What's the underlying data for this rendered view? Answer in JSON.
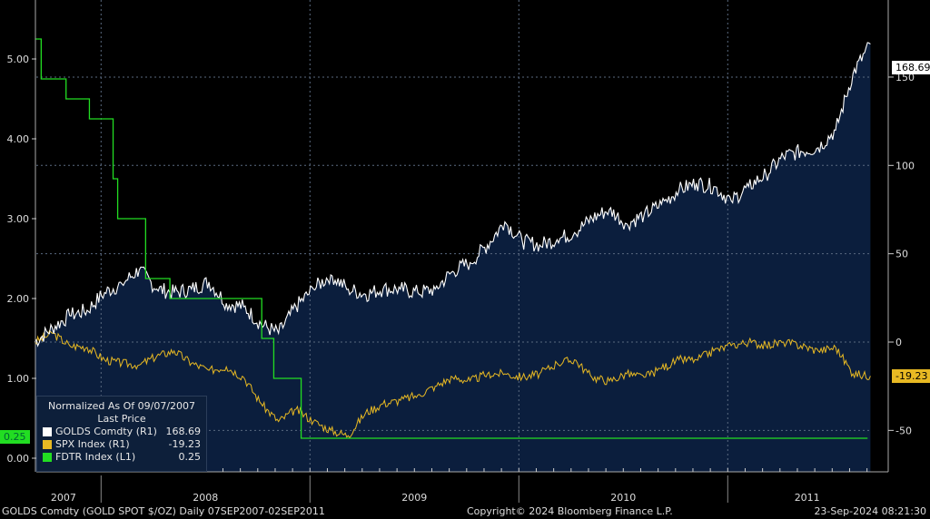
{
  "chart_data": {
    "type": "line",
    "title": "GOLDS Comdty (GOLD SPOT $/OZ)",
    "frequency": "Daily",
    "range_label": "07SEP2007-02SEP2011",
    "x_ticks": [
      "2007",
      "2008",
      "2009",
      "2010",
      "2011"
    ],
    "left_axis": {
      "ticks": [
        "0.00",
        "1.00",
        "2.00",
        "3.00",
        "4.00",
        "5.00"
      ],
      "tick_values": [
        0,
        1,
        2,
        3,
        4,
        5
      ],
      "ylim": [
        -0.1,
        5.8
      ]
    },
    "right_axis": {
      "ticks": [
        "-50",
        "0",
        "50",
        "100",
        "150"
      ],
      "tick_values": [
        -50,
        0,
        50,
        100,
        150
      ],
      "ylim": [
        -75,
        190
      ]
    },
    "legend": {
      "header1": "Normalized As Of 09/07/2007",
      "header2": "Last Price",
      "entries": [
        {
          "name": "GOLDS Comdty  (R1)",
          "value": "168.69",
          "color": "#ffffff"
        },
        {
          "name": "SPX Index  (R1)",
          "value": "-19.23",
          "color": "#e8b923"
        },
        {
          "name": "FDTR Index  (L1)",
          "value": "0.25",
          "color": "#22dd22"
        }
      ]
    },
    "last_value_tags": {
      "gold": "168.69",
      "spx": "-19.23",
      "fdtr": "0.25"
    },
    "dates": [
      "2007-09",
      "2007-10",
      "2007-11",
      "2007-12",
      "2008-01",
      "2008-02",
      "2008-03",
      "2008-04",
      "2008-05",
      "2008-06",
      "2008-07",
      "2008-08",
      "2008-09",
      "2008-10",
      "2008-11",
      "2008-12",
      "2009-01",
      "2009-02",
      "2009-03",
      "2009-04",
      "2009-05",
      "2009-06",
      "2009-07",
      "2009-08",
      "2009-09",
      "2009-10",
      "2009-11",
      "2009-12",
      "2010-01",
      "2010-02",
      "2010-03",
      "2010-04",
      "2010-05",
      "2010-06",
      "2010-07",
      "2010-08",
      "2010-09",
      "2010-10",
      "2010-11",
      "2010-12",
      "2011-01",
      "2011-02",
      "2011-03",
      "2011-04",
      "2011-05",
      "2011-06",
      "2011-07",
      "2011-08",
      "2011-09"
    ],
    "series": [
      {
        "name": "GOLDS Comdty",
        "axis": "right",
        "color": "#ffffff",
        "values": [
          0,
          8,
          15,
          18,
          28,
          33,
          41,
          30,
          28,
          30,
          34,
          22,
          20,
          10,
          5,
          20,
          30,
          38,
          30,
          27,
          30,
          30,
          28,
          30,
          40,
          45,
          55,
          68,
          57,
          55,
          58,
          62,
          70,
          75,
          67,
          72,
          78,
          86,
          90,
          88,
          80,
          88,
          95,
          105,
          108,
          110,
          120,
          152,
          168.69
        ]
      },
      {
        "name": "SPX Index",
        "axis": "right",
        "color": "#e8b923",
        "values": [
          0,
          5,
          -2,
          -3,
          -10,
          -12,
          -13,
          -8,
          -5,
          -12,
          -16,
          -14,
          -20,
          -35,
          -45,
          -38,
          -45,
          -50,
          -53,
          -40,
          -35,
          -33,
          -30,
          -25,
          -20,
          -22,
          -18,
          -18,
          -20,
          -18,
          -12,
          -10,
          -20,
          -22,
          -18,
          -20,
          -15,
          -10,
          -10,
          -5,
          -2,
          0,
          -2,
          0,
          -2,
          -5,
          -3,
          -18,
          -19.23
        ]
      },
      {
        "name": "FDTR Index",
        "axis": "left",
        "color": "#22dd22",
        "type": "step",
        "steps": [
          [
            "2007-09-07",
            5.25
          ],
          [
            "2007-09-18",
            4.75
          ],
          [
            "2007-10-31",
            4.5
          ],
          [
            "2007-12-11",
            4.25
          ],
          [
            "2008-01-22",
            3.5
          ],
          [
            "2008-01-30",
            3.0
          ],
          [
            "2008-03-18",
            2.25
          ],
          [
            "2008-04-30",
            2.0
          ],
          [
            "2008-10-08",
            1.5
          ],
          [
            "2008-10-29",
            1.0
          ],
          [
            "2008-12-16",
            0.25
          ],
          [
            "2011-09-02",
            0.25
          ]
        ]
      }
    ]
  },
  "footer": {
    "left": "GOLDS Comdty (GOLD SPOT $/OZ)  Daily 07SEP2007-02SEP2011",
    "center": "Copyright© 2024 Bloomberg Finance L.P.",
    "right": "23-Sep-2024 08:21:30"
  },
  "colors": {
    "plot_bg": "#0b1e3d",
    "gold": "#ffffff",
    "spx": "#e8b923",
    "fdtr": "#22dd22"
  }
}
